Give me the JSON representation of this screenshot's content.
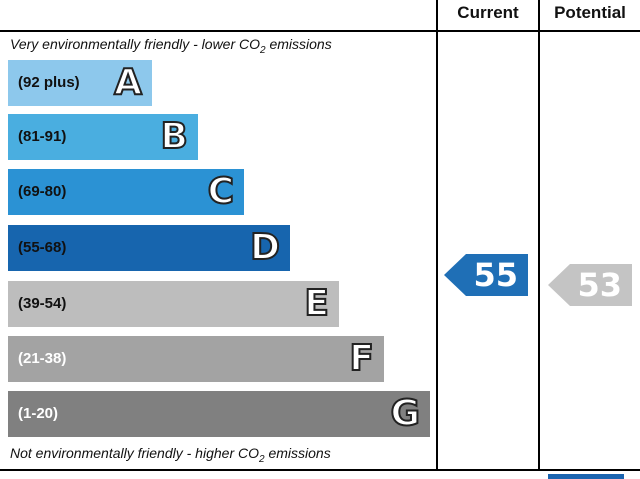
{
  "headers": {
    "current": "Current",
    "potential": "Potential"
  },
  "captions": {
    "top_prefix": "Very environmentally friendly - lower C",
    "top_o2": "O",
    "top_sub": "2",
    "top_suffix": " emissions",
    "bottom_prefix": "Not environmentally friendly - higher C",
    "bottom_o2": "O",
    "bottom_sub": "2",
    "bottom_suffix": " emissions"
  },
  "bands": [
    {
      "range": "(92 plus)",
      "letter": "A",
      "color": "#8dc8ec",
      "text_color": "#111111"
    },
    {
      "range": "(81-91)",
      "letter": "B",
      "color": "#4aaee0",
      "text_color": "#111111"
    },
    {
      "range": "(69-80)",
      "letter": "C",
      "color": "#2b92d4",
      "text_color": "#111111"
    },
    {
      "range": "(55-68)",
      "letter": "D",
      "color": "#1765ae",
      "text_color": "#111111"
    },
    {
      "range": "(39-54)",
      "letter": "E",
      "color": "#bdbdbd",
      "text_color": "#111111"
    },
    {
      "range": "(21-38)",
      "letter": "F",
      "color": "#a3a3a3",
      "text_color": "#ffffff"
    },
    {
      "range": "(1-20)",
      "letter": "G",
      "color": "#808080",
      "text_color": "#ffffff"
    }
  ],
  "current": {
    "value": "55",
    "color": "#1f6fb6"
  },
  "potential": {
    "value": "53",
    "color": "#c4c4c4"
  }
}
